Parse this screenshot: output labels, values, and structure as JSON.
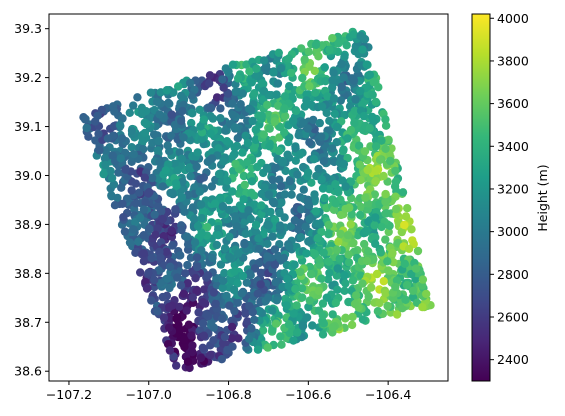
{
  "chart_data": {
    "type": "scatter",
    "title": "",
    "xlabel": "",
    "ylabel": "",
    "xlim": [
      -107.25,
      -106.25
    ],
    "ylim": [
      38.58,
      39.33
    ],
    "xticks": [
      -107.2,
      -107.0,
      -106.8,
      -106.6,
      -106.4
    ],
    "xtick_labels": [
      "−107.2",
      "−107.0",
      "−106.8",
      "−106.6",
      "−106.4"
    ],
    "yticks": [
      38.6,
      38.7,
      38.8,
      38.9,
      39.0,
      39.1,
      39.2,
      39.3
    ],
    "ytick_labels": [
      "38.6",
      "38.7",
      "38.8",
      "38.9",
      "39.0",
      "39.1",
      "39.2",
      "39.3"
    ],
    "footprint_corners": [
      [
        -106.82,
        39.22
      ],
      [
        -106.46,
        39.3
      ],
      [
        -106.29,
        38.73
      ],
      [
        -106.93,
        38.6
      ],
      [
        -107.17,
        39.12
      ]
    ],
    "colorbar": {
      "label": "Height (m)",
      "min": 2300,
      "max": 4020,
      "ticks": [
        2400,
        2600,
        2800,
        3000,
        3200,
        3400,
        3600,
        3800,
        4000
      ],
      "tick_labels": [
        "2400",
        "2600",
        "2800",
        "3000",
        "3200",
        "3400",
        "3600",
        "3800",
        "4000"
      ],
      "colormap": "viridis"
    },
    "colormap_stops": [
      "#440154",
      "#482777",
      "#3e4a89",
      "#31688e",
      "#26828e",
      "#1f9e89",
      "#35b779",
      "#6ece58",
      "#b5de2b",
      "#fde725"
    ]
  }
}
